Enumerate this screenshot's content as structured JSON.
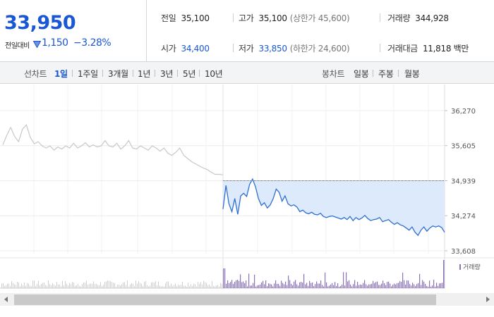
{
  "price": {
    "current": "33,950",
    "change_label": "전일대비",
    "change_amount": "1,150",
    "change_percent": "−3.28%"
  },
  "stats": {
    "prev_close": {
      "label": "전일",
      "value": "35,100"
    },
    "high": {
      "label": "고가",
      "value": "35,100",
      "sub": "(상한가 45,600)"
    },
    "volume": {
      "label": "거래량",
      "value": "344,928"
    },
    "open": {
      "label": "시가",
      "value": "34,400"
    },
    "low": {
      "label": "저가",
      "value": "33,850",
      "sub": "(하한가 24,600)"
    },
    "trade_value": {
      "label": "거래대금",
      "value": "11,818 백만"
    }
  },
  "line_chart_tabs": {
    "label": "선차트",
    "items": [
      "1일",
      "1주일",
      "3개월",
      "1년",
      "3년",
      "5년",
      "10년"
    ],
    "active": "1일"
  },
  "candle_chart_tabs": {
    "label": "봉차트",
    "items": [
      "일봉",
      "주봉",
      "월봉"
    ]
  },
  "colors": {
    "accent_blue": "#1a57d6",
    "today_line": "#2f6ed3",
    "today_fill": "#ddeafb",
    "prev_day_line": "#c8c8c8",
    "prev_day_volume": "#cfcfcf",
    "today_volume": "#8c73b8"
  },
  "icons": {
    "change_arrow": "down-triangle-icon",
    "scroll_left": "arrow-left-icon",
    "scroll_right": "arrow-right-icon"
  },
  "chart_data": {
    "type": "line",
    "y_ticks": [
      "36,270",
      "35,605",
      "34,939",
      "34,274",
      "33,608"
    ],
    "ylim": [
      33608,
      36270
    ],
    "reference_line": 34939,
    "volume_legend": "거래량",
    "series": [
      {
        "name": "",
        "role": "previous-day",
        "values": [
          35620,
          35800,
          35950,
          35780,
          35680,
          35920,
          36000,
          35760,
          35640,
          35680,
          35600,
          35560,
          35600,
          35520,
          35580,
          35540,
          35600,
          35560,
          35650,
          35560,
          35600,
          35660,
          35580,
          35620,
          35580,
          35600,
          35700,
          35600,
          35580,
          35650,
          35540,
          35600,
          35700,
          35560,
          35540,
          35600,
          35560,
          35520,
          35600,
          35560,
          35500,
          35560,
          35460,
          35420,
          35480,
          35560,
          35420,
          35360,
          35300,
          35260,
          35220,
          35180,
          35150,
          35100,
          35060,
          35060,
          35050
        ]
      },
      {
        "name": "",
        "role": "today",
        "values": [
          34400,
          34850,
          34500,
          34350,
          34600,
          34300,
          34650,
          34700,
          34640,
          34870,
          34970,
          34820,
          34600,
          34470,
          34520,
          34420,
          34480,
          34600,
          34780,
          34720,
          34550,
          34650,
          34500,
          34460,
          34480,
          34440,
          34350,
          34380,
          34330,
          34310,
          34340,
          34300,
          34290,
          34320,
          34260,
          34240,
          34260,
          34270,
          34250,
          34230,
          34210,
          34240,
          34200,
          34260,
          34180,
          34240,
          34200,
          34230,
          34280,
          34220,
          34180,
          34200,
          34210,
          34240,
          34160,
          34180,
          34200,
          34150,
          34110,
          34140,
          34100,
          34080,
          34040,
          34000,
          34060,
          33960,
          33900,
          34000,
          34060,
          33980,
          34040,
          34080,
          34060,
          34080,
          34050,
          33960
        ]
      }
    ]
  }
}
